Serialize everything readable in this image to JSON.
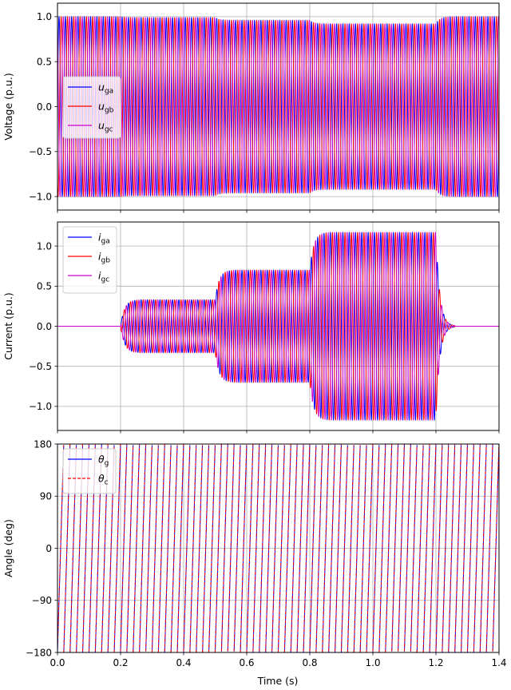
{
  "chart_data": [
    {
      "type": "line",
      "ylabel": "Voltage (p.u.)",
      "xlim": [
        0,
        1.4
      ],
      "ylim": [
        -1.15,
        1.15
      ],
      "yticks": [
        -1.0,
        -0.5,
        0.0,
        0.5,
        1.0
      ],
      "ytick_labels": [
        "−1.0",
        "−0.5",
        "0.0",
        "0.5",
        "1.0"
      ],
      "grid": true,
      "legend_position": "center-left",
      "series": [
        {
          "name": "u_ga",
          "label_main": "u",
          "label_sub": "ga",
          "color": "#0000ff",
          "style": "solid"
        },
        {
          "name": "u_gb",
          "label_main": "u",
          "label_sub": "gb",
          "color": "#ff0000",
          "style": "solid"
        },
        {
          "name": "u_gc",
          "label_main": "u",
          "label_sub": "gc",
          "color": "#cc00cc",
          "style": "solid"
        }
      ],
      "frequency_hz": 50,
      "amplitude_segments": [
        {
          "t_start": 0.0,
          "t_end": 0.2,
          "amplitude": 1.0
        },
        {
          "t_start": 0.2,
          "t_end": 0.5,
          "amplitude": 0.99
        },
        {
          "t_start": 0.5,
          "t_end": 0.8,
          "amplitude": 0.96
        },
        {
          "t_start": 0.8,
          "t_end": 1.2,
          "amplitude": 0.92
        },
        {
          "t_start": 1.2,
          "t_end": 1.4,
          "amplitude": 1.0
        }
      ]
    },
    {
      "type": "line",
      "ylabel": "Current (p.u.)",
      "xlim": [
        0,
        1.4
      ],
      "ylim": [
        -1.3,
        1.3
      ],
      "yticks": [
        -1.0,
        -0.5,
        0.0,
        0.5,
        1.0
      ],
      "ytick_labels": [
        "−1.0",
        "−0.5",
        "0.0",
        "0.5",
        "1.0"
      ],
      "grid": true,
      "legend_position": "top-left",
      "series": [
        {
          "name": "i_ga",
          "label_main": "i",
          "label_sub": "ga",
          "color": "#0000ff",
          "style": "solid"
        },
        {
          "name": "i_gb",
          "label_main": "i",
          "label_sub": "gb",
          "color": "#ff0000",
          "style": "solid"
        },
        {
          "name": "i_gc",
          "label_main": "i",
          "label_sub": "gc",
          "color": "#cc00cc",
          "style": "solid"
        }
      ],
      "frequency_hz": 50,
      "amplitude_segments": [
        {
          "t_start": 0.0,
          "t_end": 0.2,
          "amplitude": 0.0
        },
        {
          "t_start": 0.2,
          "t_end": 0.5,
          "amplitude": 0.33
        },
        {
          "t_start": 0.5,
          "t_end": 0.8,
          "amplitude": 0.7
        },
        {
          "t_start": 0.8,
          "t_end": 1.2,
          "amplitude": 1.17
        },
        {
          "t_start": 1.2,
          "t_end": 1.4,
          "amplitude": 0.0
        }
      ]
    },
    {
      "type": "line",
      "ylabel": "Angle (deg)",
      "xlabel": "Time (s)",
      "xlim": [
        0,
        1.4
      ],
      "xticks": [
        0.0,
        0.2,
        0.4,
        0.6,
        0.8,
        1.0,
        1.2,
        1.4
      ],
      "xtick_labels": [
        "0.0",
        "0.2",
        "0.4",
        "0.6",
        "0.8",
        "1.0",
        "1.2",
        "1.4"
      ],
      "ylim": [
        -180,
        180
      ],
      "yticks": [
        -180,
        -90,
        0,
        90,
        180
      ],
      "ytick_labels": [
        "−180",
        "−90",
        "0",
        "90",
        "180"
      ],
      "grid": true,
      "legend_position": "top-left",
      "series": [
        {
          "name": "theta_g",
          "label_main": "θ",
          "label_sub": "g",
          "color": "#0000ff",
          "style": "solid"
        },
        {
          "name": "theta_c",
          "label_main": "θ",
          "label_sub": "c",
          "color": "#ff0000",
          "style": "dashed"
        }
      ],
      "frequency_hz": 50
    }
  ]
}
